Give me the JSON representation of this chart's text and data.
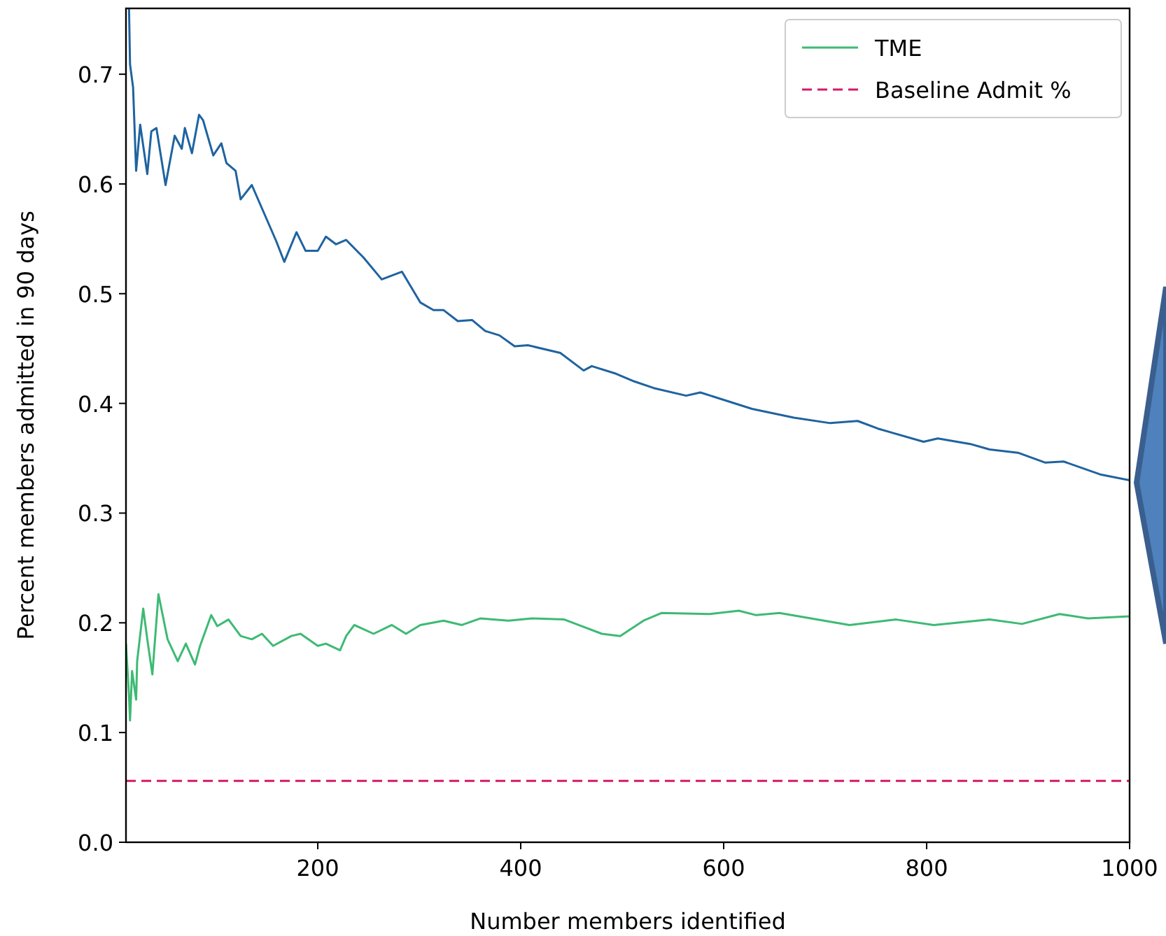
{
  "chart_data": {
    "type": "line",
    "xlabel": "Number members identified",
    "ylabel": "Percent members admitted in 90 days",
    "xlim": [
      11,
      1000
    ],
    "xticks": [
      200,
      400,
      600,
      800,
      1000
    ],
    "ylim": [
      0,
      0.76
    ],
    "yticks": [
      {
        "value": 0,
        "label": "0.0"
      },
      0.1,
      0.2,
      0.3,
      0.4,
      0.5,
      0.6,
      0.7
    ],
    "legend": "top right",
    "grid": false,
    "line_style": "solid",
    "marker": "none",
    "series": [
      {
        "color": "#1f63a0",
        "x": [
          14,
          15,
          18,
          21,
          25,
          32,
          36,
          41,
          50,
          59,
          66,
          69,
          76,
          83,
          87,
          97,
          105,
          110,
          119,
          124,
          135,
          159,
          167,
          179,
          188,
          200,
          208,
          218,
          228,
          245,
          263,
          283,
          301,
          314,
          324,
          338,
          352,
          365,
          379,
          394,
          407,
          439,
          462,
          470,
          494,
          512,
          531,
          563,
          577,
          628,
          669,
          705,
          732,
          752,
          797,
          811,
          843,
          862,
          890,
          917,
          935,
          972,
          1000
        ],
        "values": [
          0.76,
          0.709,
          0.688,
          0.612,
          0.654,
          0.609,
          0.648,
          0.651,
          0.599,
          0.644,
          0.632,
          0.651,
          0.628,
          0.663,
          0.658,
          0.626,
          0.637,
          0.619,
          0.612,
          0.586,
          0.599,
          0.548,
          0.529,
          0.556,
          0.539,
          0.539,
          0.552,
          0.545,
          0.549,
          0.533,
          0.513,
          0.52,
          0.492,
          0.485,
          0.485,
          0.475,
          0.476,
          0.466,
          0.462,
          0.452,
          0.453,
          0.446,
          0.43,
          0.434,
          0.427,
          0.42,
          0.414,
          0.407,
          0.41,
          0.395,
          0.387,
          0.382,
          0.384,
          0.377,
          0.365,
          0.368,
          0.363,
          0.358,
          0.355,
          0.346,
          0.347,
          0.335,
          0.33
        ]
      },
      {
        "name": "TME",
        "color": "#3dba74",
        "x": [
          11,
          14,
          15,
          17,
          21,
          22,
          28,
          32,
          37,
          43,
          52,
          62,
          70,
          79,
          84,
          95,
          101,
          112,
          124,
          135,
          145,
          156,
          174,
          183,
          200,
          208,
          222,
          228,
          236,
          255,
          273,
          287,
          301,
          324,
          342,
          360,
          388,
          411,
          443,
          457,
          480,
          498,
          521,
          539,
          586,
          615,
          632,
          655,
          724,
          770,
          807,
          862,
          894,
          931,
          959,
          1000
        ],
        "values": [
          0.181,
          0.133,
          0.111,
          0.156,
          0.13,
          0.165,
          0.213,
          0.185,
          0.153,
          0.226,
          0.185,
          0.165,
          0.181,
          0.162,
          0.179,
          0.207,
          0.197,
          0.203,
          0.188,
          0.185,
          0.19,
          0.179,
          0.188,
          0.19,
          0.179,
          0.181,
          0.175,
          0.188,
          0.198,
          0.19,
          0.198,
          0.19,
          0.198,
          0.202,
          0.198,
          0.204,
          0.202,
          0.204,
          0.203,
          0.198,
          0.19,
          0.188,
          0.202,
          0.209,
          0.208,
          0.211,
          0.207,
          0.209,
          0.198,
          0.203,
          0.198,
          0.203,
          0.199,
          0.208,
          0.204,
          0.206
        ]
      }
    ],
    "ref_lines": [
      {
        "axis": "y",
        "value": 0.056,
        "label": "Baseline Admit %",
        "color": "#d6196b",
        "line_style": "dashed"
      }
    ]
  }
}
